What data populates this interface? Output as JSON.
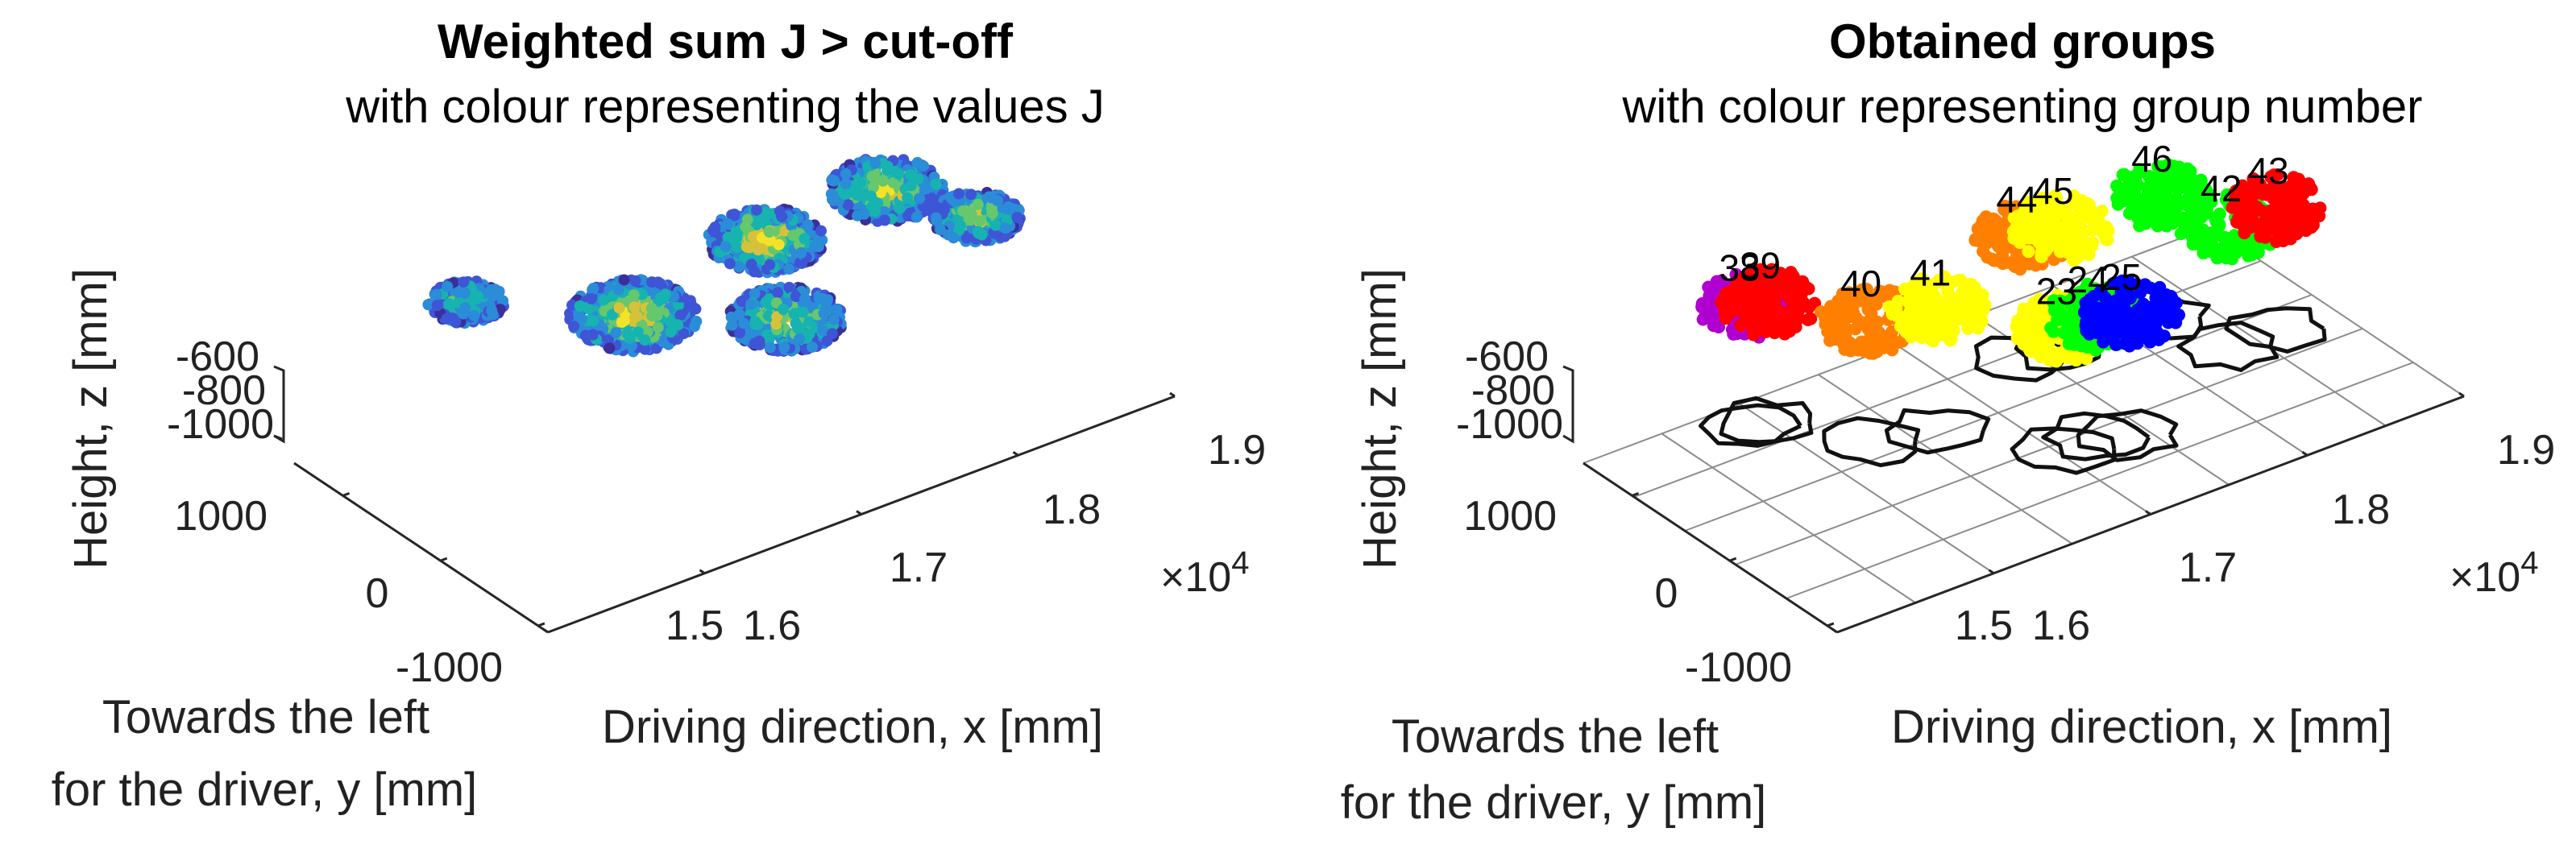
{
  "chart_data": [
    {
      "type": "scatter",
      "title": "Weighted sum J > cut-off",
      "subtitle": "with colour representing the values J",
      "xlabel": "Driving direction, x [mm]",
      "ylabel_line1": "Towards the left",
      "ylabel_line2": "for the driver, y [mm]",
      "zlabel": "Height, z [mm]",
      "x_ticks": [
        "1.5",
        "1.6",
        "1.7",
        "1.8",
        "1.9"
      ],
      "x_exponent_base": "×10",
      "x_exponent": "4",
      "y_ticks": [
        "1000",
        "0",
        "-1000"
      ],
      "z_ticks": [
        "-600",
        "-800",
        "-1000"
      ],
      "grid": false,
      "colormap": [
        "#3b2f9a",
        "#3e55d6",
        "#2b8cd8",
        "#17b3b0",
        "#66c76d",
        "#d6c23a",
        "#f4e229"
      ],
      "clusters": [
        {
          "x": 15850,
          "y": 1100,
          "spread": 300,
          "j": 0.45
        },
        {
          "x": 16450,
          "y": 350,
          "spread": 500,
          "j": 0.8
        },
        {
          "x": 17050,
          "y": -250,
          "spread": 450,
          "j": 0.6
        },
        {
          "x": 17450,
          "y": 600,
          "spread": 450,
          "j": 0.85
        },
        {
          "x": 18250,
          "y": 650,
          "spread": 450,
          "j": 0.75
        },
        {
          "x": 18450,
          "y": 50,
          "spread": 350,
          "j": 0.7
        }
      ]
    },
    {
      "type": "scatter",
      "title": "Obtained groups",
      "subtitle": "with colour representing group number",
      "xlabel": "Driving direction, x [mm]",
      "ylabel_line1": "Towards the left",
      "ylabel_line2": "for the driver, y [mm]",
      "zlabel": "Height, z [mm]",
      "x_ticks": [
        "1.5",
        "1.6",
        "1.7",
        "1.8",
        "1.9"
      ],
      "x_exponent_base": "×10",
      "x_exponent": "4",
      "y_ticks": [
        "1000",
        "0",
        "-1000"
      ],
      "z_ticks": [
        "-600",
        "-800",
        "-1000"
      ],
      "grid": true,
      "groups": [
        {
          "label": "38",
          "color": "#b000d0",
          "x": 15800,
          "y": 1100
        },
        {
          "label": "39",
          "color": "#ff0000",
          "x": 15900,
          "y": 1050
        },
        {
          "label": "40",
          "color": "#ff8000",
          "x": 16200,
          "y": 500
        },
        {
          "label": "41",
          "color": "#ffff00",
          "x": 16550,
          "y": 350
        },
        {
          "label": "23",
          "color": "#ffff00",
          "x": 16950,
          "y": -300
        },
        {
          "label": "24",
          "color": "#00ff00",
          "x": 17150,
          "y": -300
        },
        {
          "label": "25",
          "color": "#0000ff",
          "x": 17300,
          "y": -400
        },
        {
          "label": "44",
          "color": "#ff8000",
          "x": 17350,
          "y": 750
        },
        {
          "label": "45",
          "color": "#ffff00",
          "x": 17550,
          "y": 700
        },
        {
          "label": "46",
          "color": "#00ff00",
          "x": 18150,
          "y": 650
        },
        {
          "label": "42",
          "color": "#00ff00",
          "x": 18250,
          "y": 100
        },
        {
          "label": "43",
          "color": "#ff0000",
          "x": 18550,
          "y": 100
        }
      ]
    }
  ]
}
